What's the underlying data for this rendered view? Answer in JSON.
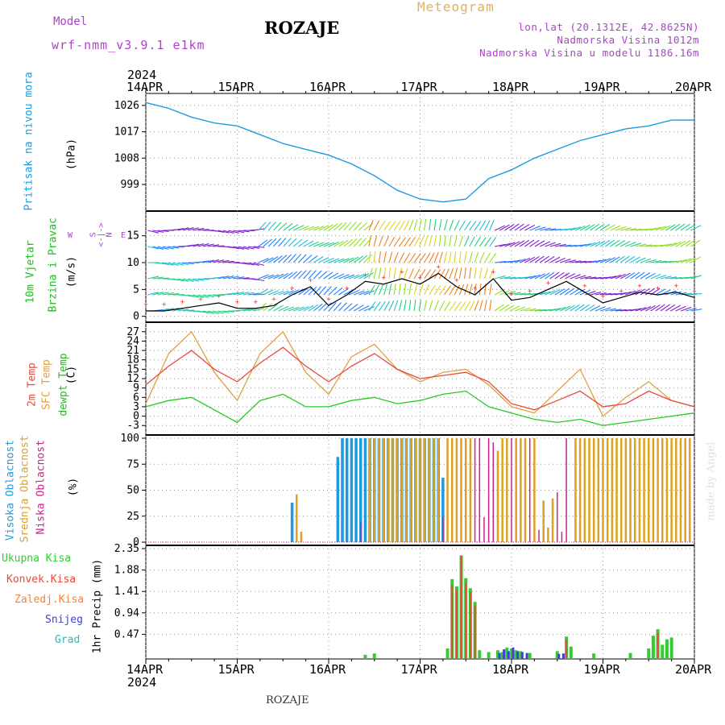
{
  "header": {
    "model_label": "Model",
    "model_name": "wrf-nmm_v3.9.1 e1km",
    "location": "ROZAJE",
    "product": "Meteogram",
    "lonlat": "lon,lat (20.1312E, 42.8625N)",
    "elevation": "Nadmorska Visina 1012m",
    "model_elevation": "Nadmorska Visina u modelu 1186.16m",
    "year_top": "2024",
    "year_bottom": "2024",
    "footer_location": "ROZAJE",
    "credit": "made by Angel"
  },
  "time_axis": {
    "labels": [
      "14APR",
      "15APR",
      "16APR",
      "17APR",
      "18APR",
      "19APR",
      "20APR"
    ],
    "range_days": [
      0,
      6
    ]
  },
  "panels": {
    "pressure": {
      "title": "Pritisak na nivou mora",
      "unit": "(hPa)"
    },
    "wind": {
      "title1": "10m Vjetar",
      "title2": "Brzina i Pravac",
      "unit": "(m/s)",
      "compass": {
        "n": "N",
        "s": "S",
        "e": "E",
        "w": "W",
        "diagram": "<-|->"
      }
    },
    "temperature": {
      "label_2m": "2m Temp",
      "label_sfc": "SFC Temp",
      "label_dewpt": "dewpt Temp",
      "unit": "(C)"
    },
    "clouds": {
      "label_high": "Visoka Oblacnost",
      "label_mid": "Srednja Oblacnost",
      "label_low": "Niska Oblacnost",
      "unit": "(%)"
    },
    "precip": {
      "ylabel": "1hr Precip (mm)",
      "legend": [
        "Ukupna Kisa",
        "Konvek.Kisa",
        "Zaledj.Kisa",
        "Snijeg",
        "Grad"
      ]
    }
  },
  "colors": {
    "pressure": "#1e9be0",
    "wind_speed": "#000000",
    "gust_marker": "#ff3030",
    "temp_2m": "#e84a3c",
    "temp_sfc": "#e0a040",
    "dewpt": "#22cc22",
    "cloud_high": "#1e9be0",
    "cloud_mid": "#e0a020",
    "cloud_low": "#d0208a",
    "precip_total": "#33cc33",
    "precip_conv": "#e84a3c",
    "precip_frz": "#ff8030",
    "snow": "#4040e0",
    "hail": "#20c0c0",
    "purple_text": "#b040d0"
  },
  "chart_data": [
    {
      "type": "line",
      "name": "pressure",
      "ylim": [
        991,
        1029
      ],
      "yticks": [
        999,
        1008,
        1017,
        1026
      ],
      "x": [
        0,
        0.25,
        0.5,
        0.75,
        1,
        1.25,
        1.5,
        1.75,
        2,
        2.25,
        2.5,
        2.75,
        3,
        3.25,
        3.5,
        3.75,
        4,
        4.25,
        4.5,
        4.75,
        5,
        5.25,
        5.5,
        5.75,
        6
      ],
      "values": [
        1027,
        1025,
        1022,
        1020,
        1019,
        1016,
        1013,
        1011,
        1009,
        1006,
        1002,
        997,
        994,
        993,
        994,
        1001,
        1004,
        1008,
        1011,
        1014,
        1016,
        1018,
        1019,
        1021,
        1021
      ]
    },
    {
      "type": "line",
      "name": "wind_speed",
      "ylim": [
        -0.5,
        19
      ],
      "yticks": [
        0,
        5,
        10,
        15
      ],
      "x": [
        0.0,
        0.2,
        0.4,
        0.6,
        0.8,
        1.0,
        1.2,
        1.4,
        1.6,
        1.8,
        2.0,
        2.2,
        2.4,
        2.6,
        2.8,
        3.0,
        3.2,
        3.4,
        3.6,
        3.8,
        4.0,
        4.2,
        4.4,
        4.6,
        4.8,
        5.0,
        5.2,
        5.4,
        5.6,
        5.8,
        6.0
      ],
      "values": [
        1.0,
        1.0,
        1.5,
        2.0,
        2.5,
        1.5,
        1.5,
        2.0,
        4.0,
        5.5,
        2.0,
        4.0,
        6.5,
        6.0,
        7.0,
        6.0,
        8.0,
        5.5,
        4.0,
        7.0,
        3.0,
        3.5,
        5.0,
        6.5,
        4.5,
        2.5,
        3.5,
        4.5,
        4.0,
        4.5,
        3.5
      ]
    },
    {
      "type": "line",
      "name": "2m_temp",
      "ylim": [
        -5,
        29
      ],
      "yticks": [
        -3,
        0,
        3,
        6,
        9,
        12,
        15,
        18,
        21,
        24,
        27
      ],
      "x": [
        0,
        0.25,
        0.5,
        0.75,
        1,
        1.25,
        1.5,
        1.75,
        2,
        2.25,
        2.5,
        2.75,
        3,
        3.25,
        3.5,
        3.75,
        4,
        4.25,
        4.5,
        4.75,
        5,
        5.25,
        5.5,
        5.75,
        6
      ],
      "values": [
        10,
        16,
        21,
        15,
        11,
        17,
        22,
        16,
        11,
        16,
        20,
        15,
        12,
        13,
        14,
        11,
        4,
        2,
        5,
        8,
        3,
        4,
        8,
        5,
        3
      ]
    },
    {
      "type": "line",
      "name": "sfc_temp",
      "ylim": [
        -5,
        29
      ],
      "yticks": [
        -3,
        0,
        3,
        6,
        9,
        12,
        15,
        18,
        21,
        24,
        27
      ],
      "x": [
        0,
        0.25,
        0.5,
        0.75,
        1,
        1.25,
        1.5,
        1.75,
        2,
        2.25,
        2.5,
        2.75,
        3,
        3.25,
        3.5,
        3.75,
        4,
        4.25,
        4.5,
        4.75,
        5,
        5.25,
        5.5,
        5.75,
        6
      ],
      "values": [
        4,
        20,
        27,
        14,
        5,
        20,
        27,
        14,
        7,
        19,
        23,
        15,
        11,
        14,
        15,
        10,
        3,
        1,
        8,
        15,
        0,
        6,
        11,
        5,
        3
      ]
    },
    {
      "type": "line",
      "name": "dewpt_temp",
      "ylim": [
        -5,
        29
      ],
      "yticks": [
        -3,
        0,
        3,
        6,
        9,
        12,
        15,
        18,
        21,
        24,
        27
      ],
      "x": [
        0,
        0.25,
        0.5,
        0.75,
        1,
        1.25,
        1.5,
        1.75,
        2,
        2.25,
        2.5,
        2.75,
        3,
        3.25,
        3.5,
        3.75,
        4,
        4.25,
        4.5,
        4.75,
        5,
        5.25,
        5.5,
        5.75,
        6
      ],
      "values": [
        3,
        5,
        6,
        2,
        -2,
        5,
        7,
        3,
        3,
        5,
        6,
        4,
        5,
        7,
        8,
        3,
        1,
        -1,
        -2,
        -1,
        -3,
        -2,
        -1,
        0,
        1
      ]
    },
    {
      "type": "bar",
      "name": "clouds",
      "ylim": [
        0,
        100
      ],
      "yticks": [
        0,
        25,
        50,
        75,
        100
      ],
      "series": [
        {
          "name": "Visoka Oblacnost",
          "x": [
            1.6,
            2.1,
            2.15,
            2.2,
            2.25,
            2.3,
            2.35,
            2.4,
            2.45,
            2.5,
            2.55,
            2.6,
            2.65,
            2.7,
            2.75,
            2.8,
            2.85,
            2.9,
            2.95,
            3.0,
            3.05,
            3.1,
            3.15,
            3.2,
            3.25
          ],
          "values": [
            38,
            82,
            100,
            100,
            100,
            100,
            100,
            100,
            100,
            100,
            100,
            100,
            100,
            100,
            100,
            100,
            100,
            100,
            100,
            100,
            100,
            100,
            100,
            100,
            62
          ]
        },
        {
          "name": "Srednja Oblacnost",
          "x": [
            1.65,
            1.7,
            2.45,
            2.5,
            2.55,
            2.6,
            2.65,
            2.7,
            2.75,
            2.8,
            2.85,
            2.9,
            2.95,
            3.0,
            3.05,
            3.1,
            3.15,
            3.2,
            3.3,
            3.35,
            3.4,
            3.45,
            3.5,
            3.55,
            3.85,
            3.9,
            3.95,
            4.05,
            4.1,
            4.15,
            4.25,
            4.35,
            4.4,
            4.45,
            4.7,
            4.75,
            4.8,
            4.85,
            4.9,
            4.95,
            5.0,
            5.05,
            5.1,
            5.15,
            5.2,
            5.25,
            5.3,
            5.35,
            5.4,
            5.45,
            5.5,
            5.55,
            5.6,
            5.65,
            5.7,
            5.75,
            5.8,
            5.85,
            5.9,
            5.95
          ],
          "values": [
            46,
            10,
            100,
            100,
            100,
            100,
            100,
            100,
            100,
            100,
            100,
            100,
            100,
            100,
            100,
            100,
            100,
            100,
            100,
            100,
            100,
            100,
            100,
            100,
            88,
            100,
            100,
            100,
            100,
            100,
            100,
            40,
            14,
            42,
            100,
            100,
            100,
            100,
            100,
            100,
            100,
            100,
            100,
            100,
            100,
            100,
            100,
            100,
            100,
            100,
            100,
            100,
            100,
            100,
            100,
            100,
            100,
            100,
            100,
            100
          ]
        },
        {
          "name": "Niska Oblacnost",
          "x": [
            2.35,
            3.25,
            3.6,
            3.65,
            3.7,
            3.75,
            3.8,
            4.0,
            4.2,
            4.3,
            4.5,
            4.55,
            4.6
          ],
          "values": [
            20,
            24,
            100,
            100,
            24,
            100,
            96,
            100,
            100,
            12,
            48,
            10,
            100
          ]
        }
      ]
    },
    {
      "type": "bar",
      "name": "precip",
      "ylim": [
        0,
        2.35
      ],
      "yticks": [
        0.47,
        0.94,
        1.41,
        1.88,
        2.35
      ],
      "series": [
        {
          "name": "Ukupna Kisa",
          "x": [
            2.4,
            2.5,
            3.3,
            3.35,
            3.4,
            3.45,
            3.5,
            3.55,
            3.6,
            3.65,
            3.75,
            3.85,
            3.9,
            3.95,
            4.0,
            4.05,
            4.1,
            4.2,
            4.5,
            4.6,
            4.65,
            4.9,
            5.3,
            5.5,
            5.55,
            5.6,
            5.65,
            5.7,
            5.75
          ],
          "values": [
            0.02,
            0.05,
            0.16,
            1.68,
            1.52,
            2.2,
            1.7,
            1.48,
            1.18,
            0.12,
            0.08,
            0.12,
            0.08,
            0.18,
            0.16,
            0.12,
            0.1,
            0.06,
            0.1,
            0.42,
            0.2,
            0.05,
            0.06,
            0.16,
            0.44,
            0.58,
            0.24,
            0.36,
            0.4
          ]
        },
        {
          "name": "Konvek.Kisa",
          "x": [
            3.35,
            3.4,
            3.45,
            3.5,
            3.55,
            3.6,
            4.6,
            5.6
          ],
          "values": [
            1.55,
            1.45,
            2.2,
            1.6,
            1.4,
            1.1,
            0.35,
            0.5
          ]
        },
        {
          "name": "Snijeg",
          "x": [
            3.85,
            3.9,
            3.95,
            4.0,
            4.05,
            4.1,
            4.15,
            4.5,
            4.55
          ],
          "values": [
            0.06,
            0.14,
            0.1,
            0.18,
            0.1,
            0.08,
            0.06,
            0.04,
            0.05
          ]
        }
      ]
    }
  ]
}
